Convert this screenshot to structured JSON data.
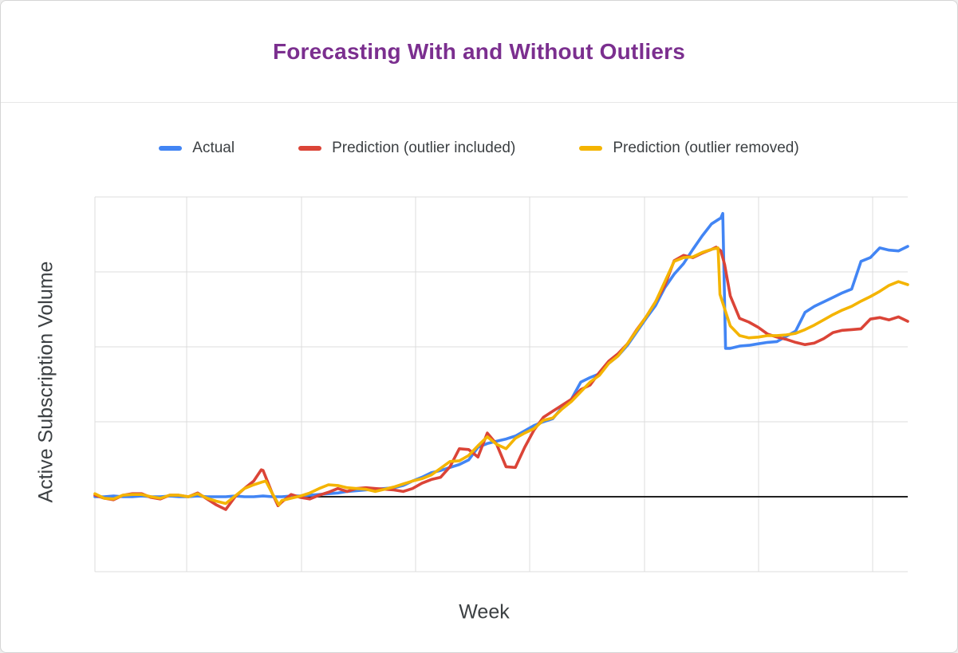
{
  "title": "Forecasting With and Without Outliers",
  "title_color": "#7B2F8F",
  "x_axis_label": "Week",
  "y_axis_label": "Active Subscription Volume",
  "legend": {
    "items": [
      {
        "label": "Actual",
        "color": "#4285F4"
      },
      {
        "label": "Prediction (outlier included)",
        "color": "#DB4437"
      },
      {
        "label": "Prediction (outlier removed)",
        "color": "#F4B400"
      }
    ]
  },
  "chart_data": {
    "type": "line",
    "title": "Forecasting With and Without Outliers",
    "xlabel": "Week",
    "ylabel": "Active Subscription Volume",
    "legend_position": "top",
    "grid": true,
    "x_axis": {
      "tick_labels_visible": false,
      "range_weeks": [
        0,
        87
      ]
    },
    "y_axis": {
      "tick_labels_visible": false,
      "units": "relative: 1.0 = one horizontal gridline, 0 = dark baseline",
      "range": [
        -1,
        4
      ]
    },
    "series": [
      {
        "name": "Actual",
        "color": "#4285F4",
        "points": [
          [
            0,
            0.0
          ],
          [
            1,
            0.0
          ],
          [
            2,
            0.01
          ],
          [
            3,
            0.0
          ],
          [
            4,
            0.0
          ],
          [
            5,
            0.01
          ],
          [
            6,
            0.0
          ],
          [
            7,
            0.0
          ],
          [
            8,
            0.01
          ],
          [
            9,
            0.0
          ],
          [
            10,
            0.0
          ],
          [
            11,
            0.01
          ],
          [
            12,
            0.0
          ],
          [
            13,
            0.0
          ],
          [
            14,
            0.0
          ],
          [
            15,
            0.01
          ],
          [
            16,
            0.0
          ],
          [
            17,
            0.0
          ],
          [
            18,
            0.01
          ],
          [
            19,
            0.0
          ],
          [
            20,
            0.0
          ],
          [
            21,
            0.01
          ],
          [
            22,
            0.01
          ],
          [
            23,
            0.02
          ],
          [
            24,
            0.03
          ],
          [
            25,
            0.04
          ],
          [
            26,
            0.05
          ],
          [
            27,
            0.07
          ],
          [
            28,
            0.08
          ],
          [
            29,
            0.09
          ],
          [
            30,
            0.1
          ],
          [
            31,
            0.11
          ],
          [
            32,
            0.12
          ],
          [
            33,
            0.15
          ],
          [
            34,
            0.21
          ],
          [
            35,
            0.26
          ],
          [
            36,
            0.32
          ],
          [
            37,
            0.35
          ],
          [
            38,
            0.39
          ],
          [
            39,
            0.43
          ],
          [
            40,
            0.49
          ],
          [
            41,
            0.66
          ],
          [
            42,
            0.71
          ],
          [
            43,
            0.74
          ],
          [
            44,
            0.77
          ],
          [
            45,
            0.81
          ],
          [
            46,
            0.88
          ],
          [
            47,
            0.95
          ],
          [
            48,
            1.0
          ],
          [
            49,
            1.04
          ],
          [
            50,
            1.19
          ],
          [
            51,
            1.3
          ],
          [
            52,
            1.53
          ],
          [
            53,
            1.59
          ],
          [
            54,
            1.64
          ],
          [
            55,
            1.78
          ],
          [
            56,
            1.88
          ],
          [
            57,
            2.02
          ],
          [
            58,
            2.2
          ],
          [
            59,
            2.38
          ],
          [
            60,
            2.55
          ],
          [
            61,
            2.79
          ],
          [
            62,
            2.97
          ],
          [
            63,
            3.11
          ],
          [
            64,
            3.3
          ],
          [
            65,
            3.48
          ],
          [
            66,
            3.64
          ],
          [
            67,
            3.72
          ],
          [
            67.2,
            3.78
          ],
          [
            67.5,
            1.98
          ],
          [
            68,
            1.98
          ],
          [
            69,
            2.01
          ],
          [
            70,
            2.02
          ],
          [
            71,
            2.04
          ],
          [
            72,
            2.06
          ],
          [
            73,
            2.07
          ],
          [
            74,
            2.14
          ],
          [
            75,
            2.21
          ],
          [
            76,
            2.46
          ],
          [
            77,
            2.54
          ],
          [
            78,
            2.6
          ],
          [
            79,
            2.66
          ],
          [
            80,
            2.72
          ],
          [
            81,
            2.77
          ],
          [
            82,
            3.14
          ],
          [
            83,
            3.19
          ],
          [
            84,
            3.32
          ],
          [
            85,
            3.29
          ],
          [
            86,
            3.28
          ],
          [
            87,
            3.34
          ]
        ]
      },
      {
        "name": "Prediction (outlier included)",
        "color": "#DB4437",
        "points": [
          [
            0,
            0.02
          ],
          [
            1,
            -0.02
          ],
          [
            2,
            -0.04
          ],
          [
            3,
            0.02
          ],
          [
            4,
            0.04
          ],
          [
            5,
            0.04
          ],
          [
            6,
            -0.01
          ],
          [
            7,
            -0.03
          ],
          [
            8,
            0.02
          ],
          [
            9,
            0.02
          ],
          [
            10,
            0.0
          ],
          [
            11,
            0.05
          ],
          [
            12,
            -0.03
          ],
          [
            13,
            -0.11
          ],
          [
            14,
            -0.17
          ],
          [
            15,
            0.0
          ],
          [
            16,
            0.11
          ],
          [
            17,
            0.21
          ],
          [
            17.8,
            0.36
          ],
          [
            18,
            0.35
          ],
          [
            19,
            0.04
          ],
          [
            19.6,
            -0.12
          ],
          [
            20,
            -0.07
          ],
          [
            21,
            0.03
          ],
          [
            22,
            -0.01
          ],
          [
            23,
            -0.03
          ],
          [
            24,
            0.02
          ],
          [
            25,
            0.06
          ],
          [
            26,
            0.11
          ],
          [
            27,
            0.07
          ],
          [
            28,
            0.11
          ],
          [
            29,
            0.12
          ],
          [
            30,
            0.11
          ],
          [
            31,
            0.1
          ],
          [
            32,
            0.09
          ],
          [
            33,
            0.07
          ],
          [
            34,
            0.11
          ],
          [
            35,
            0.18
          ],
          [
            36,
            0.23
          ],
          [
            37,
            0.26
          ],
          [
            38,
            0.4
          ],
          [
            39,
            0.64
          ],
          [
            40,
            0.63
          ],
          [
            41,
            0.53
          ],
          [
            42,
            0.85
          ],
          [
            43,
            0.7
          ],
          [
            44,
            0.4
          ],
          [
            45,
            0.39
          ],
          [
            46,
            0.66
          ],
          [
            47,
            0.89
          ],
          [
            48,
            1.06
          ],
          [
            49,
            1.14
          ],
          [
            50,
            1.22
          ],
          [
            51,
            1.3
          ],
          [
            52,
            1.43
          ],
          [
            53,
            1.49
          ],
          [
            54,
            1.66
          ],
          [
            55,
            1.81
          ],
          [
            56,
            1.91
          ],
          [
            57,
            2.04
          ],
          [
            58,
            2.23
          ],
          [
            59,
            2.4
          ],
          [
            60,
            2.6
          ],
          [
            61,
            2.82
          ],
          [
            62,
            3.15
          ],
          [
            63,
            3.22
          ],
          [
            64,
            3.19
          ],
          [
            65,
            3.25
          ],
          [
            66,
            3.3
          ],
          [
            66.5,
            3.33
          ],
          [
            67,
            3.28
          ],
          [
            67.4,
            3.1
          ],
          [
            68,
            2.68
          ],
          [
            69,
            2.38
          ],
          [
            70,
            2.33
          ],
          [
            71,
            2.26
          ],
          [
            72,
            2.17
          ],
          [
            73,
            2.13
          ],
          [
            74,
            2.1
          ],
          [
            75,
            2.06
          ],
          [
            76,
            2.03
          ],
          [
            77,
            2.05
          ],
          [
            78,
            2.11
          ],
          [
            79,
            2.19
          ],
          [
            80,
            2.22
          ],
          [
            81,
            2.23
          ],
          [
            82,
            2.24
          ],
          [
            83,
            2.37
          ],
          [
            84,
            2.39
          ],
          [
            85,
            2.36
          ],
          [
            86,
            2.4
          ],
          [
            87,
            2.34
          ]
        ]
      },
      {
        "name": "Prediction (outlier removed)",
        "color": "#F4B400",
        "points": [
          [
            0,
            0.04
          ],
          [
            1,
            -0.02
          ],
          [
            2,
            -0.03
          ],
          [
            3,
            0.02
          ],
          [
            4,
            0.03
          ],
          [
            5,
            0.03
          ],
          [
            6,
            0.0
          ],
          [
            7,
            -0.02
          ],
          [
            8,
            0.02
          ],
          [
            9,
            0.02
          ],
          [
            10,
            0.0
          ],
          [
            11,
            0.04
          ],
          [
            12,
            -0.02
          ],
          [
            13,
            -0.06
          ],
          [
            14,
            -0.09
          ],
          [
            15,
            0.01
          ],
          [
            16,
            0.11
          ],
          [
            17,
            0.16
          ],
          [
            18,
            0.2
          ],
          [
            18.3,
            0.21
          ],
          [
            19,
            0.04
          ],
          [
            19.7,
            -0.11
          ],
          [
            20,
            -0.05
          ],
          [
            21,
            -0.02
          ],
          [
            22,
            0.01
          ],
          [
            23,
            0.05
          ],
          [
            24,
            0.11
          ],
          [
            25,
            0.16
          ],
          [
            26,
            0.15
          ],
          [
            27,
            0.12
          ],
          [
            28,
            0.11
          ],
          [
            29,
            0.1
          ],
          [
            30,
            0.07
          ],
          [
            31,
            0.1
          ],
          [
            32,
            0.13
          ],
          [
            33,
            0.17
          ],
          [
            34,
            0.21
          ],
          [
            35,
            0.24
          ],
          [
            36,
            0.29
          ],
          [
            37,
            0.38
          ],
          [
            38,
            0.47
          ],
          [
            39,
            0.48
          ],
          [
            40,
            0.55
          ],
          [
            41,
            0.68
          ],
          [
            42,
            0.8
          ],
          [
            43,
            0.7
          ],
          [
            44,
            0.64
          ],
          [
            45,
            0.78
          ],
          [
            46,
            0.85
          ],
          [
            47,
            0.91
          ],
          [
            48,
            1.02
          ],
          [
            49,
            1.05
          ],
          [
            50,
            1.17
          ],
          [
            51,
            1.27
          ],
          [
            52,
            1.4
          ],
          [
            53,
            1.53
          ],
          [
            54,
            1.62
          ],
          [
            55,
            1.78
          ],
          [
            56,
            1.88
          ],
          [
            57,
            2.04
          ],
          [
            58,
            2.22
          ],
          [
            59,
            2.4
          ],
          [
            60,
            2.6
          ],
          [
            61,
            2.87
          ],
          [
            62,
            3.14
          ],
          [
            63,
            3.19
          ],
          [
            64,
            3.2
          ],
          [
            65,
            3.26
          ],
          [
            66,
            3.3
          ],
          [
            66.7,
            3.32
          ],
          [
            66.9,
            2.7
          ],
          [
            67.5,
            2.47
          ],
          [
            68,
            2.28
          ],
          [
            69,
            2.15
          ],
          [
            70,
            2.12
          ],
          [
            71,
            2.13
          ],
          [
            72,
            2.15
          ],
          [
            73,
            2.15
          ],
          [
            74,
            2.16
          ],
          [
            75,
            2.18
          ],
          [
            76,
            2.23
          ],
          [
            77,
            2.29
          ],
          [
            78,
            2.36
          ],
          [
            79,
            2.43
          ],
          [
            80,
            2.49
          ],
          [
            81,
            2.54
          ],
          [
            82,
            2.61
          ],
          [
            83,
            2.67
          ],
          [
            84,
            2.74
          ],
          [
            85,
            2.82
          ],
          [
            86,
            2.87
          ],
          [
            87,
            2.83
          ]
        ]
      }
    ]
  }
}
